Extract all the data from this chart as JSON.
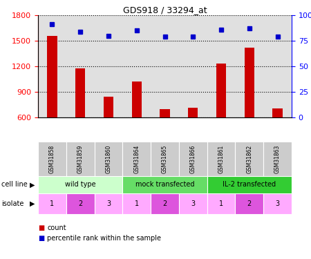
{
  "title": "GDS918 / 33294_at",
  "samples": [
    "GSM31858",
    "GSM31859",
    "GSM31860",
    "GSM31864",
    "GSM31865",
    "GSM31866",
    "GSM31861",
    "GSM31862",
    "GSM31863"
  ],
  "counts": [
    1560,
    1175,
    840,
    1020,
    695,
    710,
    1230,
    1420,
    705
  ],
  "percentile_ranks": [
    91,
    84,
    80,
    85,
    79,
    79,
    86,
    87,
    79
  ],
  "cell_lines": [
    {
      "label": "wild type",
      "span": [
        0,
        3
      ],
      "color": "#ccffcc"
    },
    {
      "label": "mock transfected",
      "span": [
        3,
        6
      ],
      "color": "#66dd66"
    },
    {
      "label": "IL-2 transfected",
      "span": [
        6,
        9
      ],
      "color": "#33cc33"
    }
  ],
  "isolates": [
    1,
    2,
    3,
    1,
    2,
    3,
    1,
    2,
    3
  ],
  "isolate_colors": [
    "#ffaaff",
    "#dd55dd",
    "#ffaaff",
    "#ffaaff",
    "#dd55dd",
    "#ffaaff",
    "#ffaaff",
    "#dd55dd",
    "#ffaaff"
  ],
  "bar_color": "#cc0000",
  "dot_color": "#0000cc",
  "ylim_left": [
    600,
    1800
  ],
  "ylim_right": [
    0,
    100
  ],
  "yticks_left": [
    600,
    900,
    1200,
    1500,
    1800
  ],
  "yticks_right": [
    0,
    25,
    50,
    75,
    100
  ],
  "background_color": "#ffffff",
  "plot_bg_color": "#e0e0e0",
  "cell_line_label": "cell line",
  "isolate_label": "isolate",
  "legend_count": "count",
  "legend_percentile": "percentile rank within the sample",
  "fig_width": 4.5,
  "fig_height": 3.75,
  "dpi": 100
}
